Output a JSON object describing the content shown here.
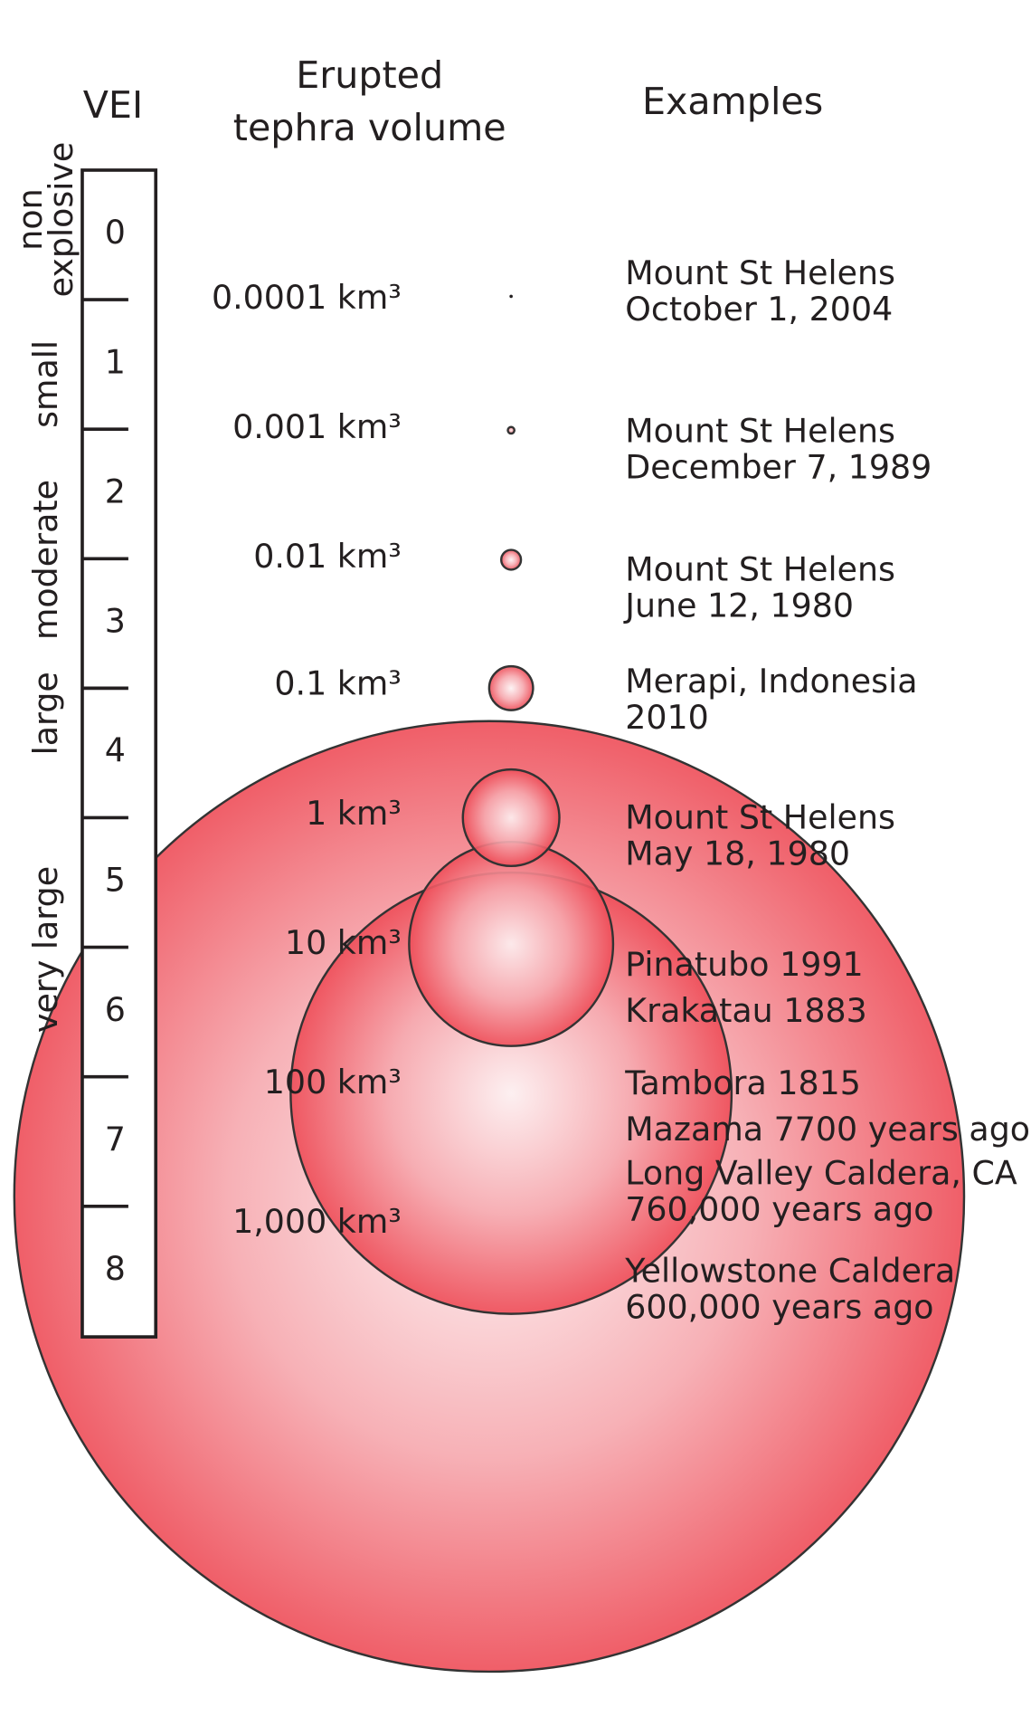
{
  "header": {
    "vei": "VEI",
    "volume": [
      "Erupted",
      "tephra volume"
    ],
    "examples": "Examples"
  },
  "vei_levels": [
    "0",
    "1",
    "2",
    "3",
    "4",
    "5",
    "6",
    "7",
    "8"
  ],
  "classes": [
    [
      "non",
      "explosive"
    ],
    [
      "small"
    ],
    [
      "moderate"
    ],
    [
      "large"
    ],
    [
      "very large"
    ]
  ],
  "volumes": [
    "0.0001 km³",
    "0.001 km³",
    "0.01 km³",
    "0.1 km³",
    "1 km³",
    "10 km³",
    "100 km³",
    "1,000 km³"
  ],
  "examples": [
    [
      "Mount St Helens",
      "October 1, 2004"
    ],
    [
      "Mount St Helens",
      "December 7, 1989"
    ],
    [
      "Mount St Helens",
      "June 12, 1980"
    ],
    [
      "Merapi, Indonesia",
      "2010"
    ],
    [
      "Mount St Helens",
      "May 18, 1980"
    ],
    [
      "Pinatubo 1991"
    ],
    [
      "Krakatau 1883"
    ],
    [
      "Tambora 1815"
    ],
    [
      "Mazama 7700 years ago"
    ],
    [
      "Long Valley Caldera, CA",
      "760,000 years ago"
    ],
    [
      "Yellowstone Caldera",
      "600,000 years ago"
    ]
  ]
}
